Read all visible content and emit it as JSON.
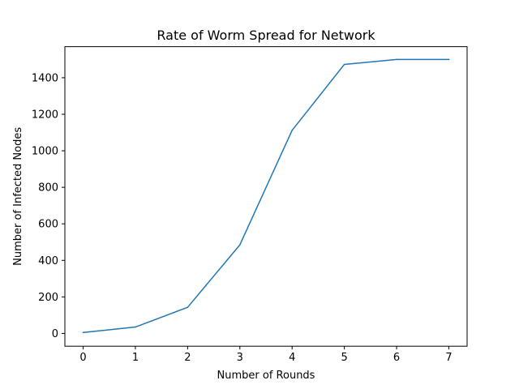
{
  "chart_data": {
    "type": "line",
    "title": "Rate of Worm Spread for Network",
    "xlabel": "Number of Rounds",
    "ylabel": "Number of Infected Nodes",
    "x": [
      0,
      1,
      2,
      3,
      4,
      5,
      6,
      7
    ],
    "series": [
      {
        "values": [
          5,
          35,
          143,
          485,
          1112,
          1473,
          1500,
          1500
        ],
        "color": "#1f77b4"
      }
    ],
    "xlim": [
      -0.35,
      7.35
    ],
    "ylim": [
      -70,
      1570
    ],
    "xticks": [
      0,
      1,
      2,
      3,
      4,
      5,
      6,
      7
    ],
    "yticks": [
      0,
      200,
      400,
      600,
      800,
      1000,
      1200,
      1400
    ],
    "xtick_labels": [
      "0",
      "1",
      "2",
      "3",
      "4",
      "5",
      "6",
      "7"
    ],
    "ytick_labels": [
      "0",
      "200",
      "400",
      "600",
      "800",
      "1000",
      "1200",
      "1400"
    ],
    "grid": false,
    "legend": "none"
  }
}
